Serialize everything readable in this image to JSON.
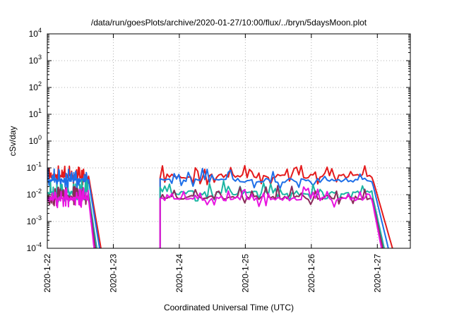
{
  "chart_data": {
    "type": "line",
    "title": "/data/run/goesPlots/archive/2020-01-27/10:00/flux/../bryn/5daysMoon.plot",
    "xlabel": "Coordinated Universal Time (UTC)",
    "ylabel": "cSv/day",
    "y_scale": "log",
    "ylim": [
      0.0001,
      10000
    ],
    "xlim": [
      "2020-01-22",
      "2020-01-27 12:00"
    ],
    "x_tick_labels": [
      "2020-1-22",
      "2020-1-23",
      "2020-1-24",
      "2020-1-25",
      "2020-1-26",
      "2020-1-27"
    ],
    "y_tick_labels": [
      {
        "base": "10",
        "exp": "-4"
      },
      {
        "base": "10",
        "exp": "-3"
      },
      {
        "base": "10",
        "exp": "-2"
      },
      {
        "base": "10",
        "exp": "-1"
      },
      {
        "base": "10",
        "exp": "0"
      },
      {
        "base": "10",
        "exp": "1"
      },
      {
        "base": "10",
        "exp": "2"
      },
      {
        "base": "10",
        "exp": "3"
      },
      {
        "base": "10",
        "exp": "4"
      }
    ],
    "grid": true,
    "legend": "none",
    "series": [
      {
        "color": "#e41a1c",
        "level": 0.05,
        "segments": [
          {
            "start": "2020-01-22 00:00",
            "end": "2020-01-22 15:00",
            "decay_end": "2020-01-22 19:30"
          },
          {
            "start": "2020-01-23 17:00",
            "end": "2020-01-26 22:00",
            "decay_end": "2020-01-27 05:30"
          }
        ]
      },
      {
        "color": "#1e6fe8",
        "level": 0.035,
        "segments": [
          {
            "start": "2020-01-22 00:00",
            "end": "2020-01-22 15:00",
            "decay_end": "2020-01-22 19:00"
          },
          {
            "start": "2020-01-23 17:00",
            "end": "2020-01-26 22:00",
            "decay_end": "2020-01-27 04:00"
          }
        ]
      },
      {
        "color": "#1cb5a3",
        "level": 0.012,
        "segments": [
          {
            "start": "2020-01-22 00:00",
            "end": "2020-01-22 15:00",
            "decay_end": "2020-01-22 18:00"
          },
          {
            "start": "2020-01-23 17:00",
            "end": "2020-01-26 22:00",
            "decay_end": "2020-01-27 02:30"
          }
        ]
      },
      {
        "color": "#8b2a5a",
        "level": 0.008,
        "segments": [
          {
            "start": "2020-01-22 00:00",
            "end": "2020-01-22 15:00",
            "decay_end": "2020-01-22 17:30"
          },
          {
            "start": "2020-01-23 17:00",
            "end": "2020-01-26 22:00",
            "decay_end": "2020-01-27 02:00"
          }
        ]
      },
      {
        "color": "#e815e0",
        "level": 0.007,
        "segments": [
          {
            "start": "2020-01-22 00:00",
            "end": "2020-01-22 15:00",
            "decay_end": "2020-01-22 17:00"
          },
          {
            "start": "2020-01-23 17:00",
            "end": "2020-01-26 22:00",
            "decay_end": "2020-01-27 01:30"
          }
        ]
      }
    ]
  }
}
